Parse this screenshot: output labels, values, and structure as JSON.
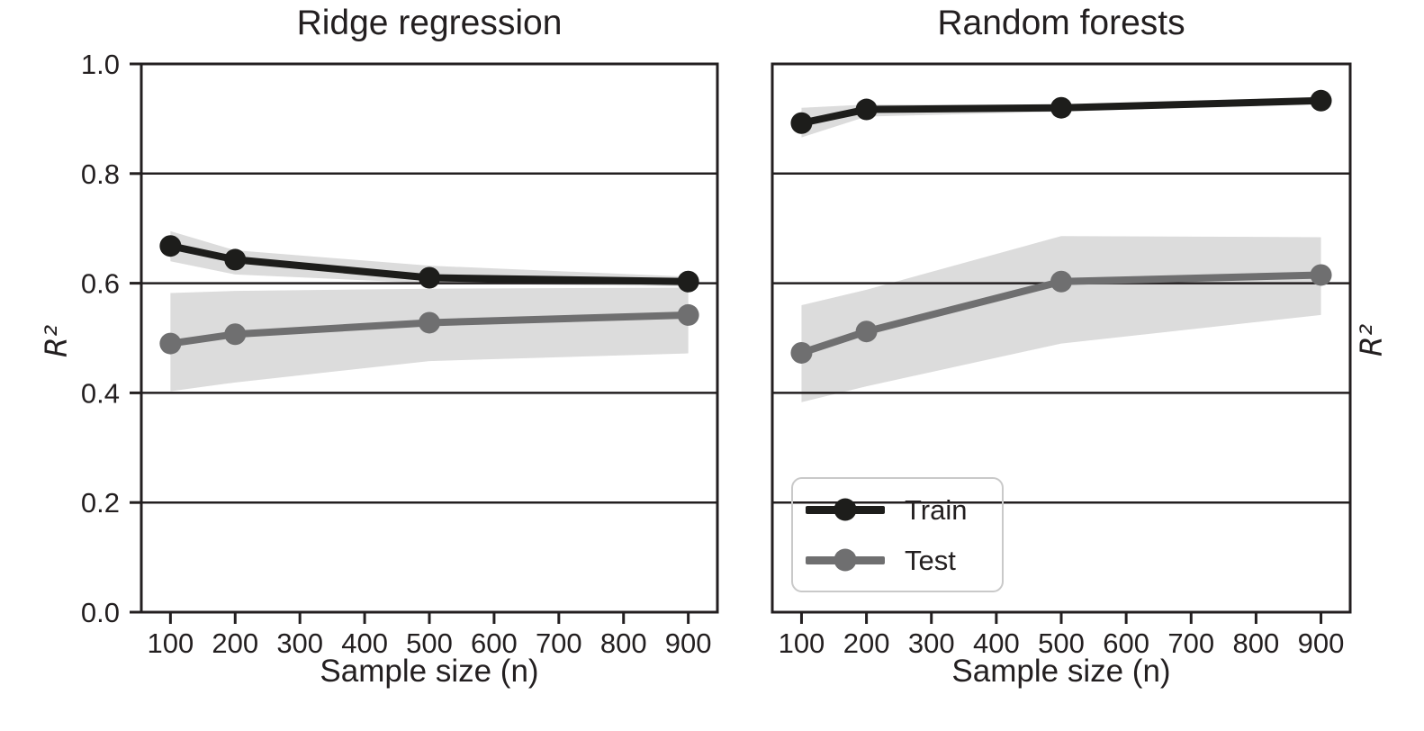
{
  "figure": {
    "background": "#ffffff",
    "text_color": "#231f20",
    "band_color": "#dcdcdc",
    "grid_color": "#231f20",
    "legend_border_color": "#c9c9c9"
  },
  "chart_data": [
    {
      "type": "line",
      "title": "Ridge regression",
      "xlabel": "Sample size (n)",
      "ylabel": "R²",
      "x": [
        100,
        200,
        500,
        900
      ],
      "xticks": [
        "100",
        "200",
        "300",
        "400",
        "500",
        "600",
        "700",
        "800",
        "900"
      ],
      "yticks": [
        "0.0",
        "0.2",
        "0.4",
        "0.6",
        "0.8",
        "1.0"
      ],
      "xlim": [
        55,
        945
      ],
      "ylim": [
        0,
        1
      ],
      "grid": true,
      "legend": false,
      "series": [
        {
          "name": "Train",
          "color": "#1d1d1b",
          "values": [
            0.668,
            0.643,
            0.61,
            0.603
          ],
          "band_upper": [
            0.695,
            0.66,
            0.632,
            0.612
          ],
          "band_lower": [
            0.64,
            0.616,
            0.6,
            0.594
          ]
        },
        {
          "name": "Test",
          "color": "#6f6f70",
          "values": [
            0.49,
            0.507,
            0.528,
            0.542
          ],
          "band_upper": [
            0.582,
            0.586,
            0.59,
            0.592
          ],
          "band_lower": [
            0.403,
            0.419,
            0.458,
            0.472
          ]
        }
      ]
    },
    {
      "type": "line",
      "title": "Random forests",
      "xlabel": "Sample size (n)",
      "ylabel": "R²",
      "x": [
        100,
        200,
        500,
        900
      ],
      "xticks": [
        "100",
        "200",
        "300",
        "400",
        "500",
        "600",
        "700",
        "800",
        "900"
      ],
      "yticks": [
        "0.0",
        "0.2",
        "0.4",
        "0.6",
        "0.8",
        "1.0"
      ],
      "xlim": [
        55,
        945
      ],
      "ylim": [
        0,
        1
      ],
      "grid": true,
      "legend": true,
      "series": [
        {
          "name": "Train",
          "color": "#1d1d1b",
          "values": [
            0.892,
            0.917,
            0.92,
            0.933
          ],
          "band_upper": [
            0.92,
            0.926,
            0.926,
            0.938
          ],
          "band_lower": [
            0.866,
            0.904,
            0.913,
            0.927
          ]
        },
        {
          "name": "Test",
          "color": "#6f6f70",
          "values": [
            0.473,
            0.512,
            0.603,
            0.615
          ],
          "band_upper": [
            0.56,
            0.588,
            0.686,
            0.684
          ],
          "band_lower": [
            0.383,
            0.412,
            0.49,
            0.542
          ]
        }
      ]
    }
  ]
}
